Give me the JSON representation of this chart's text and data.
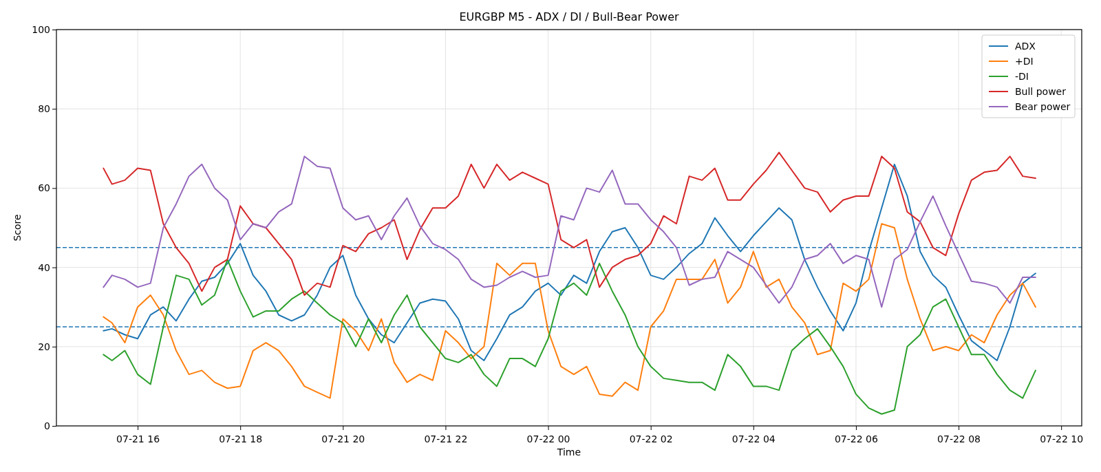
{
  "chart_data": {
    "type": "line",
    "title": "EURGBP M5 - ADX / DI / Bull-Bear Power",
    "xlabel": "Time",
    "ylabel": "Score",
    "x": [
      "--07-21T15:20",
      "--07-21T15:30",
      "--07-21T15:45",
      "--07-21T16:00",
      "--07-21T16:15",
      "--07-21T16:30",
      "--07-21T16:45",
      "--07-21T17:00",
      "--07-21T17:15",
      "--07-21T17:30",
      "--07-21T17:45",
      "--07-21T18:00",
      "--07-21T18:15",
      "--07-21T18:30",
      "--07-21T18:45",
      "--07-21T19:00",
      "--07-21T19:15",
      "--07-21T19:30",
      "--07-21T19:45",
      "--07-21T20:00",
      "--07-21T20:15",
      "--07-21T20:30",
      "--07-21T20:45",
      "--07-21T21:00",
      "--07-21T21:15",
      "--07-21T21:30",
      "--07-21T21:45",
      "--07-21T22:00",
      "--07-21T22:15",
      "--07-21T22:30",
      "--07-21T22:45",
      "--07-21T23:00",
      "--07-21T23:15",
      "--07-21T23:30",
      "--07-21T23:45",
      "--07-22T00:00",
      "--07-22T00:15",
      "--07-22T00:30",
      "--07-22T00:45",
      "--07-22T01:00",
      "--07-22T01:15",
      "--07-22T01:30",
      "--07-22T01:45",
      "--07-22T02:00",
      "--07-22T02:15",
      "--07-22T02:30",
      "--07-22T02:45",
      "--07-22T03:00",
      "--07-22T03:15",
      "--07-22T03:30",
      "--07-22T03:45",
      "--07-22T04:00",
      "--07-22T04:15",
      "--07-22T04:30",
      "--07-22T04:45",
      "--07-22T05:00",
      "--07-22T05:15",
      "--07-22T05:30",
      "--07-22T05:45",
      "--07-22T06:00",
      "--07-22T06:15",
      "--07-22T06:30",
      "--07-22T06:45",
      "--07-22T07:00",
      "--07-22T07:15",
      "--07-22T07:30",
      "--07-22T07:45",
      "--07-22T08:00",
      "--07-22T08:15",
      "--07-22T08:30",
      "--07-22T08:45",
      "--07-22T09:00",
      "--07-22T09:15",
      "--07-22T09:30"
    ],
    "series": [
      {
        "name": "ADX",
        "color": "#1f77b4",
        "values": [
          24,
          24.5,
          23,
          22,
          28,
          30,
          26.5,
          32,
          36.5,
          37.5,
          41,
          46,
          38,
          34,
          28,
          26.5,
          28,
          33,
          40,
          43,
          33,
          27,
          23,
          21,
          26,
          31,
          32,
          31.5,
          27,
          19,
          16.5,
          22,
          28,
          30,
          34,
          36,
          33,
          38,
          36,
          44,
          49,
          50,
          45,
          38,
          37,
          40,
          43.5,
          46,
          52.5,
          48,
          44,
          48,
          51.5,
          55,
          52,
          42,
          35,
          29,
          24,
          31,
          44,
          55,
          66,
          58,
          44,
          38,
          35,
          28,
          21.5,
          19,
          16.5,
          25,
          36,
          38.5
        ]
      },
      {
        "name": "+DI",
        "color": "#ff7f0e",
        "values": [
          27.5,
          26,
          21,
          30,
          33,
          28,
          19,
          13,
          14,
          11,
          9.5,
          10,
          19,
          21,
          19,
          15,
          10,
          8.5,
          7,
          27,
          24,
          19,
          27,
          16,
          11,
          13,
          11.5,
          24,
          21,
          17,
          20,
          41,
          38,
          41,
          41,
          24,
          15,
          13,
          15,
          8,
          7.5,
          11,
          9,
          25,
          29,
          37,
          37,
          37,
          42,
          31,
          35,
          44,
          35,
          37,
          30,
          26,
          18,
          19,
          36,
          34,
          37,
          51,
          50,
          37,
          27,
          19,
          20,
          19,
          23,
          21,
          28,
          33,
          36,
          30
        ]
      },
      {
        "name": "-DI",
        "color": "#2ca02c",
        "values": [
          18,
          16.5,
          19,
          13,
          10.5,
          25,
          38,
          37,
          30.5,
          33,
          42,
          34,
          27.5,
          29,
          29,
          32,
          34,
          31,
          28,
          26,
          20,
          27,
          21,
          28,
          33,
          25,
          21,
          17,
          16,
          18,
          13,
          10,
          17,
          17,
          15,
          22,
          34,
          36,
          33,
          41,
          34,
          28,
          20,
          15,
          12,
          11.5,
          11,
          11,
          9,
          18,
          15,
          10,
          10,
          9,
          19,
          22,
          24.5,
          20,
          15,
          8,
          4.5,
          3,
          4,
          20,
          23,
          30,
          32,
          25,
          18,
          18,
          13,
          9,
          7,
          14
        ]
      },
      {
        "name": "Bull power",
        "color": "#d62728",
        "values": [
          65,
          61,
          62,
          65,
          64.5,
          51,
          45,
          41,
          34,
          40,
          42,
          55.5,
          51,
          50,
          46,
          42,
          33,
          36,
          35,
          45.5,
          44,
          48.5,
          50,
          52,
          42,
          49.5,
          55,
          55,
          58,
          66,
          60,
          66,
          62,
          64,
          62.5,
          61,
          47,
          45,
          47,
          35,
          40,
          42,
          43,
          46,
          53,
          51,
          63,
          62,
          65,
          57,
          57,
          61,
          64.5,
          69,
          64.5,
          60,
          59,
          54,
          57,
          58,
          58,
          68,
          65,
          54,
          51.5,
          45,
          43,
          53.5,
          62,
          64,
          64.5,
          68,
          63,
          62.5
        ]
      },
      {
        "name": "Bear power",
        "color": "#9467bd",
        "values": [
          35,
          38,
          37,
          35,
          36,
          50,
          56,
          63,
          66,
          60,
          57,
          47,
          51,
          50,
          54,
          56,
          68,
          65.5,
          65,
          55,
          52,
          53,
          47,
          53,
          57.5,
          50.5,
          46,
          44.5,
          42,
          37,
          35,
          35.5,
          37.5,
          39,
          37.5,
          38,
          53,
          52,
          60,
          59,
          64.5,
          56,
          56,
          52,
          49,
          45,
          35.5,
          37,
          37.5,
          44,
          42,
          40,
          35.5,
          31,
          35,
          42,
          43,
          46,
          41,
          43,
          42,
          30,
          42,
          44.5,
          51.5,
          58,
          50.5,
          43.5,
          36.5,
          36,
          35,
          31,
          37.5,
          37.5
        ]
      }
    ],
    "xlim": [
      "--07-21T14:25",
      "--07-22T10:24"
    ],
    "xticks": [
      {
        "value": "--07-21T16:00",
        "label": "07-21 16"
      },
      {
        "value": "--07-21T18:00",
        "label": "07-21 18"
      },
      {
        "value": "--07-21T20:00",
        "label": "07-21 20"
      },
      {
        "value": "--07-21T22:00",
        "label": "07-21 22"
      },
      {
        "value": "--07-22T00:00",
        "label": "07-22 00"
      },
      {
        "value": "--07-22T02:00",
        "label": "07-22 02"
      },
      {
        "value": "--07-22T04:00",
        "label": "07-22 04"
      },
      {
        "value": "--07-22T06:00",
        "label": "07-22 06"
      },
      {
        "value": "--07-22T08:00",
        "label": "07-22 08"
      },
      {
        "value": "--07-22T10:00",
        "label": "07-22 10"
      }
    ],
    "ylim": [
      0,
      100
    ],
    "yticks": [
      0,
      20,
      40,
      60,
      80,
      100
    ],
    "ref_lines": [
      {
        "axis": "y",
        "value": 45,
        "color": "#1f77b4",
        "line_style": "dashed"
      },
      {
        "axis": "y",
        "value": 25,
        "color": "#1f77b4",
        "line_style": "dashed"
      }
    ],
    "grid": true,
    "legend": "top right",
    "line_style": "solid",
    "marker": "none"
  }
}
